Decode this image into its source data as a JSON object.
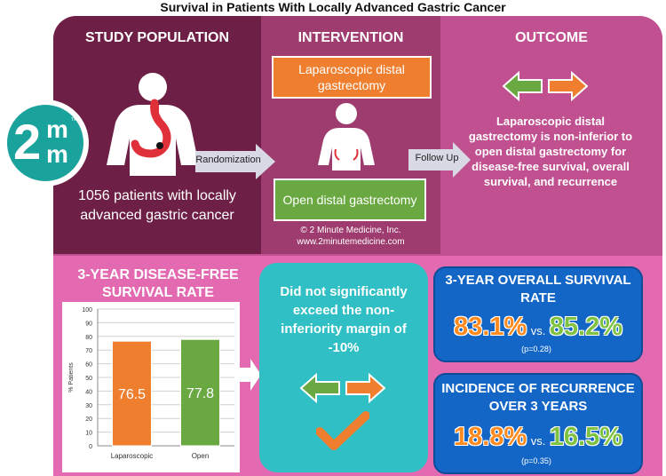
{
  "title": "Survival in Patients With Locally Advanced Gastric Cancer",
  "logo": {
    "text_top": "m",
    "text_big": "2",
    "text_bottom": "m",
    "tm": "TM"
  },
  "study_population": {
    "header": "STUDY POPULATION",
    "description": "1056 patients with locally advanced gastric cancer"
  },
  "intervention": {
    "header": "INTERVENTION",
    "arm1": "Laparoscopic distal gastrectomy",
    "arm2": "Open distal gastrectomy",
    "copyright": "© 2 Minute Medicine, Inc.",
    "website": "www.2minutemedicine.com"
  },
  "outcome": {
    "header": "OUTCOME",
    "description": "Laparoscopic distal gastrectomy is non-inferior to open distal gastrectomy for disease-free survival, overall survival, and recurrence"
  },
  "arrows": {
    "randomization": "Randomization",
    "follow_up": "Follow Up"
  },
  "dfs": {
    "header": "3-YEAR DISEASE-FREE SURVIVAL RATE"
  },
  "margin_note": {
    "text": "Did not significantly exceed the non-inferiority margin of -10%"
  },
  "overall_survival": {
    "header": "3-YEAR OVERALL SURVIVAL RATE",
    "value_a": "83.1%",
    "vs": "vs.",
    "value_b": "85.2%",
    "p": "(p=0.28)"
  },
  "recurrence": {
    "header": "INCIDENCE OF RECURRENCE OVER 3 YEARS",
    "value_a": "18.8%",
    "vs": "vs.",
    "value_b": "16.5%",
    "p": "(p=0.35)"
  },
  "colors": {
    "orange": "#ef7f2f",
    "green": "#6aa842",
    "teal": "#2fbfc4",
    "blue": "#1366c6"
  },
  "chart_data": {
    "type": "bar",
    "categories": [
      "Laparoscopic",
      "Open"
    ],
    "values": [
      76.5,
      77.8
    ],
    "value_labels": [
      "76.5",
      "77.8"
    ],
    "ylabel": "% Patients",
    "ylim": [
      0,
      100
    ],
    "yticks": [
      0,
      10,
      20,
      30,
      40,
      50,
      60,
      70,
      80,
      90,
      100
    ],
    "ytick_labels": [
      "0",
      "10",
      "20",
      "30",
      "40",
      "50",
      "60",
      "70",
      "80",
      "90",
      "100"
    ],
    "colors": [
      "#ef7f2f",
      "#6aa842"
    ],
    "grid": true
  }
}
